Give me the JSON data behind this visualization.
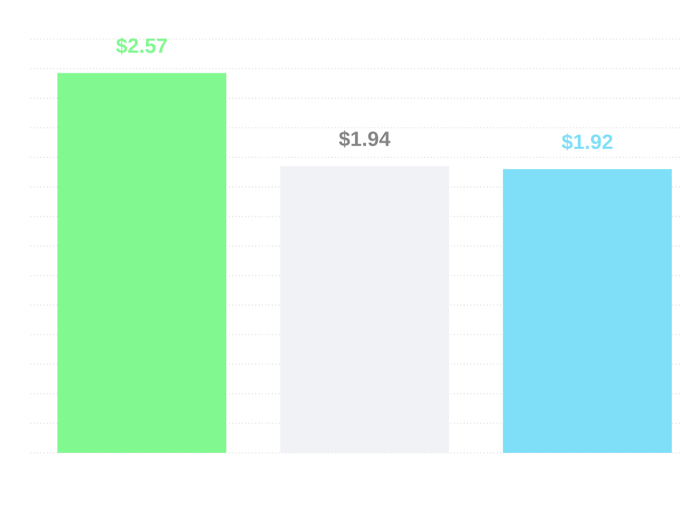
{
  "chart_data": {
    "type": "bar",
    "categories": [
      null,
      null,
      null
    ],
    "values": [
      2.57,
      1.94,
      1.92
    ],
    "colors": [
      "#82f891",
      "#f1f2f6",
      "#7fdff8"
    ],
    "value_labels": [
      "$2.57",
      "$1.94",
      "$1.92"
    ],
    "grid": "y"
  }
}
